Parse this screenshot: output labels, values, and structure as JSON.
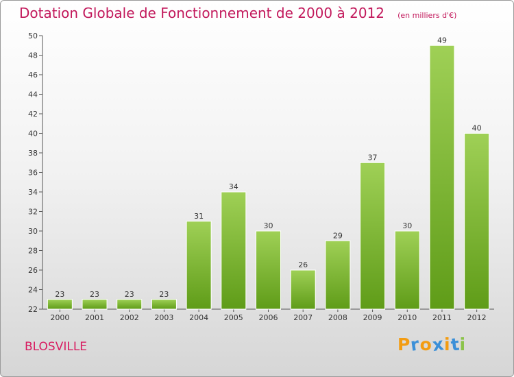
{
  "header": {
    "title": "Dotation Globale de Fonctionnement de 2000 à 2012",
    "unit": "(en milliers d'€)"
  },
  "footer": {
    "place": "BLOSVILLE",
    "brand": "Proxiti"
  },
  "colors": {
    "bar_light": "#9fd056",
    "bar_dark": "#5f9c18",
    "title": "#c2185b",
    "brand_letters": [
      "#f39c12",
      "#3a8fd8",
      "#f39c12",
      "#3a8fd8",
      "#f39c12",
      "#3a8fd8",
      "#8bc34a"
    ]
  },
  "chart_data": {
    "type": "bar",
    "title": "Dotation Globale de Fonctionnement de 2000 à 2012",
    "subtitle": "(en milliers d'€)",
    "categories": [
      "2000",
      "2001",
      "2002",
      "2003",
      "2004",
      "2005",
      "2006",
      "2007",
      "2008",
      "2009",
      "2010",
      "2011",
      "2012"
    ],
    "values": [
      23,
      23,
      23,
      23,
      31,
      34,
      30,
      26,
      29,
      37,
      30,
      49,
      40
    ],
    "xlabel": "",
    "ylabel": "",
    "ylim": [
      22,
      50
    ],
    "yticks": [
      22,
      24,
      26,
      28,
      30,
      32,
      34,
      36,
      38,
      40,
      42,
      44,
      46,
      48,
      50
    ],
    "grid": false,
    "legend": "none"
  }
}
